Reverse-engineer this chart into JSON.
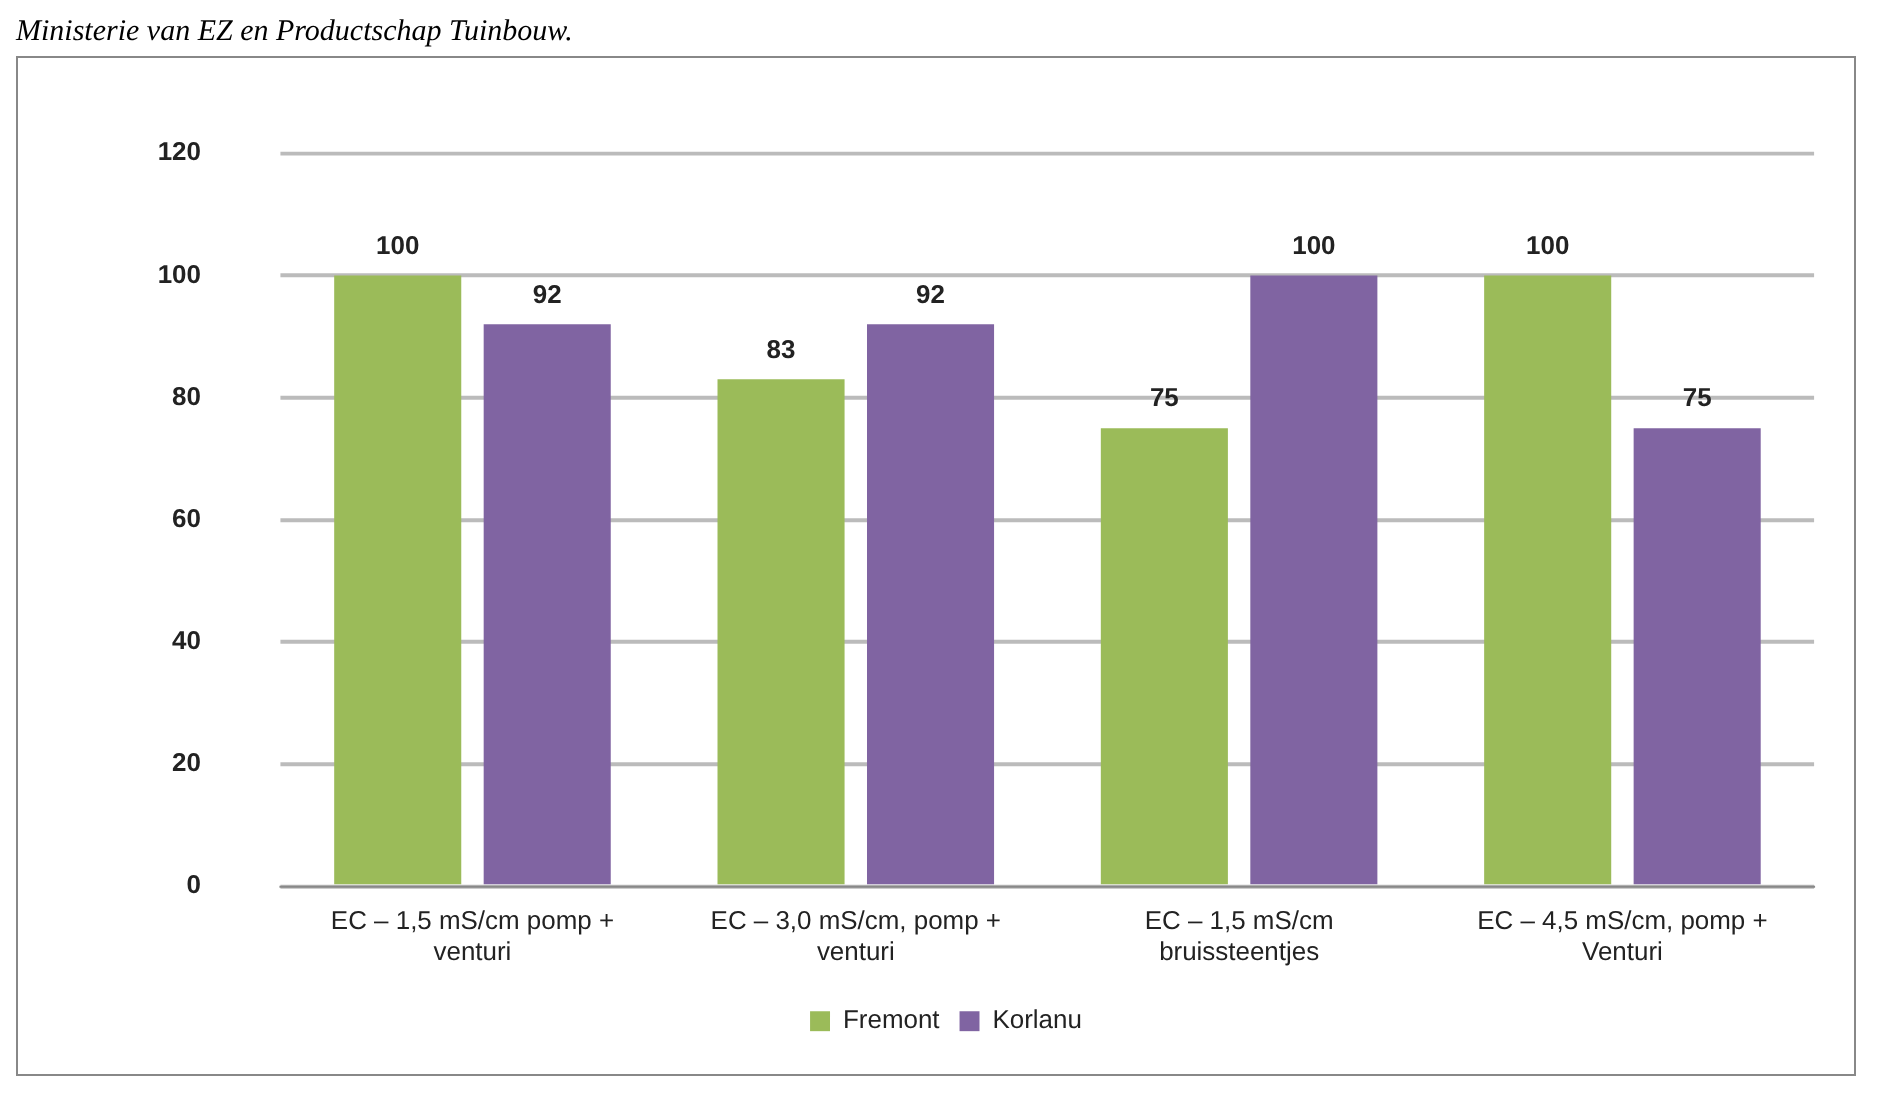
{
  "chart_data": {
    "type": "bar",
    "annotations": [
      "Ministerie van EZ en Productschap Tuinbouw."
    ],
    "categories": [
      "EC – 1,5 mS/cm pomp + venturi",
      "EC – 3,0 mS/cm, pomp + venturi",
      "EC – 1,5 mS/cm bruissteentjes",
      "EC – 4,5 mS/cm, pomp + Venturi"
    ],
    "series": [
      {
        "name": "Fremont",
        "color": "#9bbb59",
        "values": [
          100,
          83,
          75,
          100
        ]
      },
      {
        "name": "Korlanu",
        "color": "#8064a2",
        "values": [
          92,
          92,
          100,
          75
        ]
      }
    ],
    "ylim": [
      0,
      120
    ],
    "yticks": [
      0,
      20,
      40,
      60,
      80,
      100,
      120
    ],
    "grid": "y",
    "legend": "bottom",
    "data_labels": true
  }
}
